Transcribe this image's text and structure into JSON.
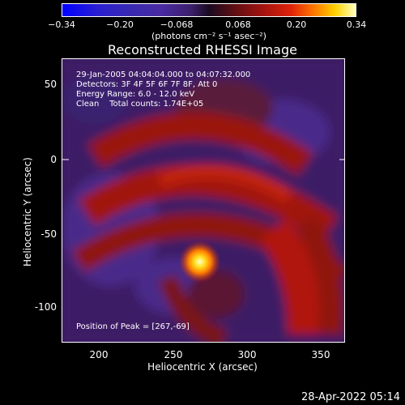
{
  "colorbar": {
    "ticks": [
      "−0.34",
      "−0.20",
      "−0.068",
      "0.068",
      "0.20",
      "0.34"
    ],
    "unit": "(photons cm⁻² s⁻¹ asec⁻²)"
  },
  "plot": {
    "title": "Reconstructed RHESSI Image",
    "info": {
      "line1": "29-Jan-2005 04:04:04.000 to 04:07:32.000",
      "line2": "Detectors: 3F 4F 5F 6F 7F 8F, Att 0",
      "line3": "Energy Range: 6.0 - 12.0 keV",
      "line4": "Clean    Total counts: 1.74E+05"
    },
    "peak_label": "Position of Peak = [267,-69]",
    "xlabel": "Heliocentric X (arcsec)",
    "ylabel": "Heliocentric Y (arcsec)",
    "xticks": [
      "200",
      "250",
      "300",
      "350"
    ],
    "yticks": [
      "50",
      "0",
      "-50",
      "-100"
    ]
  },
  "footer": {
    "timestamp": "28-Apr-2022 05:14"
  },
  "chart_data": {
    "type": "heatmap",
    "title": "Reconstructed RHESSI Image",
    "xlabel": "Heliocentric X (arcsec)",
    "ylabel": "Heliocentric Y (arcsec)",
    "xlim": [
      173,
      367
    ],
    "ylim": [
      -125,
      70
    ],
    "colorbar_range": [
      -0.34,
      0.34
    ],
    "colorbar_ticks": [
      -0.34,
      -0.2,
      -0.068,
      0.068,
      0.2,
      0.34
    ],
    "peak": {
      "x": 267,
      "y": -69
    },
    "colormap": [
      "#0000ff",
      "#3a2ab0",
      "#3b1f6a",
      "#a0130f",
      "#ff7a00",
      "#ffffc0"
    ]
  }
}
